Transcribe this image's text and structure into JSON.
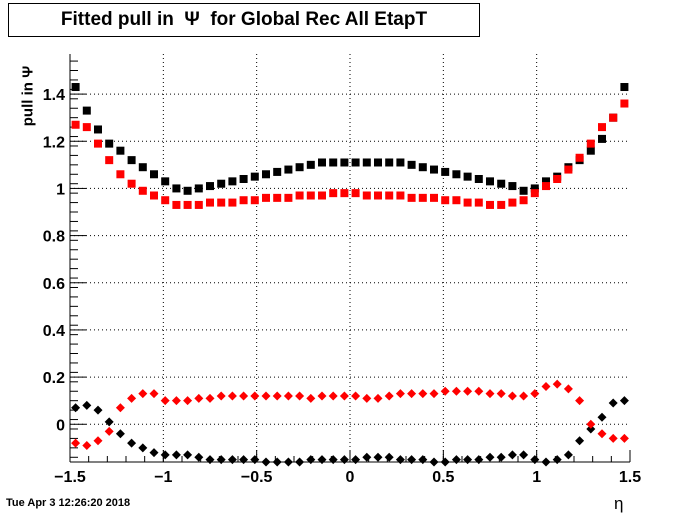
{
  "chart_data": {
    "type": "scatter",
    "title": "Fitted pull in  Ψ  for Global Rec All EtapT",
    "xlabel": "η",
    "ylabel": "pull in  Ψ",
    "xlim": [
      -1.5,
      1.5
    ],
    "ylim": [
      -0.16,
      1.57
    ],
    "x_ticks": [
      "−1.5",
      "−1",
      "−0.5",
      "0",
      "0.5",
      "1",
      "1.5"
    ],
    "y_ticks": [
      "0",
      "0.2",
      "0.4",
      "0.6",
      "0.8",
      "1",
      "1.2",
      "1.4"
    ],
    "grid": true,
    "x": [
      -1.47,
      -1.41,
      -1.35,
      -1.29,
      -1.23,
      -1.17,
      -1.11,
      -1.05,
      -0.99,
      -0.93,
      -0.87,
      -0.81,
      -0.75,
      -0.69,
      -0.63,
      -0.57,
      -0.51,
      -0.45,
      -0.39,
      -0.33,
      -0.27,
      -0.21,
      -0.15,
      -0.09,
      -0.03,
      0.03,
      0.09,
      0.15,
      0.21,
      0.27,
      0.33,
      0.39,
      0.45,
      0.51,
      0.57,
      0.63,
      0.69,
      0.75,
      0.81,
      0.87,
      0.93,
      0.99,
      1.05,
      1.11,
      1.17,
      1.23,
      1.29,
      1.35,
      1.41,
      1.47
    ],
    "series": [
      {
        "name": "",
        "marker": "square",
        "color": "#000000",
        "values": [
          1.43,
          1.33,
          1.25,
          1.19,
          1.16,
          1.12,
          1.09,
          1.06,
          1.03,
          1.0,
          0.99,
          1.0,
          1.01,
          1.02,
          1.03,
          1.04,
          1.05,
          1.06,
          1.07,
          1.08,
          1.09,
          1.1,
          1.11,
          1.11,
          1.11,
          1.11,
          1.11,
          1.11,
          1.11,
          1.11,
          1.1,
          1.09,
          1.08,
          1.07,
          1.06,
          1.05,
          1.04,
          1.03,
          1.02,
          1.01,
          0.99,
          1.0,
          1.03,
          1.05,
          1.09,
          1.12,
          1.16,
          1.21,
          1.3,
          1.43
        ]
      },
      {
        "name": "",
        "marker": "square",
        "color": "#ff0000",
        "values": [
          1.27,
          1.26,
          1.19,
          1.12,
          1.06,
          1.02,
          0.99,
          0.97,
          0.95,
          0.93,
          0.93,
          0.93,
          0.94,
          0.94,
          0.94,
          0.95,
          0.95,
          0.96,
          0.96,
          0.96,
          0.97,
          0.97,
          0.97,
          0.98,
          0.98,
          0.98,
          0.97,
          0.97,
          0.97,
          0.97,
          0.96,
          0.96,
          0.96,
          0.95,
          0.95,
          0.94,
          0.94,
          0.93,
          0.93,
          0.94,
          0.95,
          0.98,
          1.01,
          1.04,
          1.08,
          1.13,
          1.19,
          1.26,
          1.3,
          1.36
        ]
      },
      {
        "name": "",
        "marker": "diamond",
        "color": "#000000",
        "values": [
          0.07,
          0.08,
          0.06,
          0.01,
          -0.04,
          -0.08,
          -0.1,
          -0.12,
          -0.13,
          -0.13,
          -0.13,
          -0.14,
          -0.15,
          -0.15,
          -0.15,
          -0.15,
          -0.15,
          -0.16,
          -0.16,
          -0.16,
          -0.16,
          -0.15,
          -0.15,
          -0.15,
          -0.15,
          -0.15,
          -0.14,
          -0.14,
          -0.14,
          -0.15,
          -0.15,
          -0.15,
          -0.16,
          -0.16,
          -0.15,
          -0.15,
          -0.15,
          -0.14,
          -0.14,
          -0.13,
          -0.13,
          -0.15,
          -0.16,
          -0.15,
          -0.13,
          -0.07,
          -0.02,
          0.03,
          0.09,
          0.1
        ]
      },
      {
        "name": "",
        "marker": "diamond",
        "color": "#ff0000",
        "values": [
          -0.08,
          -0.09,
          -0.07,
          -0.03,
          0.07,
          0.11,
          0.13,
          0.13,
          0.1,
          0.1,
          0.1,
          0.11,
          0.11,
          0.12,
          0.12,
          0.12,
          0.12,
          0.12,
          0.12,
          0.12,
          0.12,
          0.11,
          0.12,
          0.12,
          0.12,
          0.12,
          0.11,
          0.11,
          0.12,
          0.13,
          0.13,
          0.13,
          0.13,
          0.14,
          0.14,
          0.14,
          0.14,
          0.13,
          0.13,
          0.12,
          0.12,
          0.13,
          0.16,
          0.17,
          0.15,
          0.1,
          0.0,
          -0.04,
          -0.06,
          -0.06
        ]
      }
    ]
  },
  "timestamp": "Tue Apr  3 12:26:20 2018"
}
